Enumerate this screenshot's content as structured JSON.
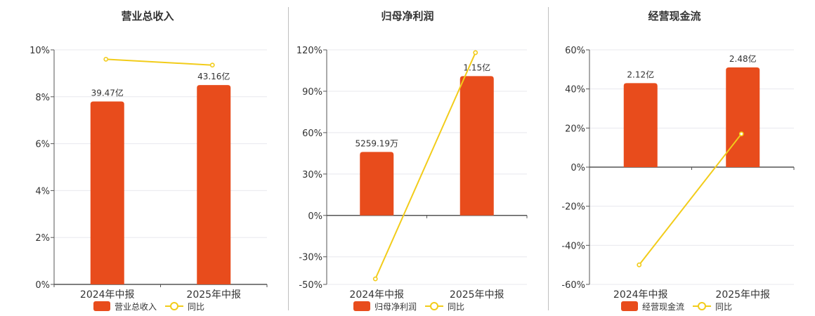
{
  "colors": {
    "bar": "#e84c1c",
    "line": "#f2cc1a",
    "grid": "#e8e8ee",
    "axis": "#555555",
    "text": "#333333"
  },
  "chart_data": [
    {
      "type": "bar",
      "title": "营业总收入",
      "categories": [
        "2024年中报",
        "2025年中报"
      ],
      "bar_series": {
        "name": "营业总收入",
        "labels": [
          "39.47亿",
          "43.16亿"
        ],
        "values": [
          39.47,
          43.16
        ],
        "unit": "亿"
      },
      "line_series": {
        "name": "同比",
        "values": [
          9.6,
          9.35
        ]
      },
      "yaxis": {
        "ticks": [
          "0%",
          "2%",
          "4%",
          "6%",
          "8%",
          "10%"
        ],
        "ylim": [
          0,
          10
        ]
      },
      "bar_top_pct": [
        7.8,
        8.5
      ],
      "legend": "bottom"
    },
    {
      "type": "bar",
      "title": "归母净利润",
      "categories": [
        "2024年中报",
        "2025年中报"
      ],
      "bar_series": {
        "name": "归母净利润",
        "labels": [
          "5259.19万",
          "1.15亿"
        ],
        "values": [
          0.5259,
          1.15
        ],
        "unit": "亿"
      },
      "line_series": {
        "name": "同比",
        "values": [
          -46,
          118
        ]
      },
      "yaxis": {
        "ticks": [
          "-50%",
          "-30%",
          "0%",
          "30%",
          "60%",
          "90%",
          "120%"
        ],
        "ylim": [
          -50,
          120
        ]
      },
      "bar_top_pct": [
        46,
        101
      ],
      "legend": "bottom"
    },
    {
      "type": "bar",
      "title": "经营现金流",
      "categories": [
        "2024年中报",
        "2025年中报"
      ],
      "bar_series": {
        "name": "经营现金流",
        "labels": [
          "2.12亿",
          "2.48亿"
        ],
        "values": [
          2.12,
          2.48
        ],
        "unit": "亿"
      },
      "line_series": {
        "name": "同比",
        "values": [
          -50,
          17
        ]
      },
      "yaxis": {
        "ticks": [
          "-60%",
          "-40%",
          "-20%",
          "0%",
          "20%",
          "40%",
          "60%"
        ],
        "ylim": [
          -60,
          60
        ]
      },
      "bar_top_pct": [
        43,
        51
      ],
      "legend": "bottom"
    }
  ]
}
